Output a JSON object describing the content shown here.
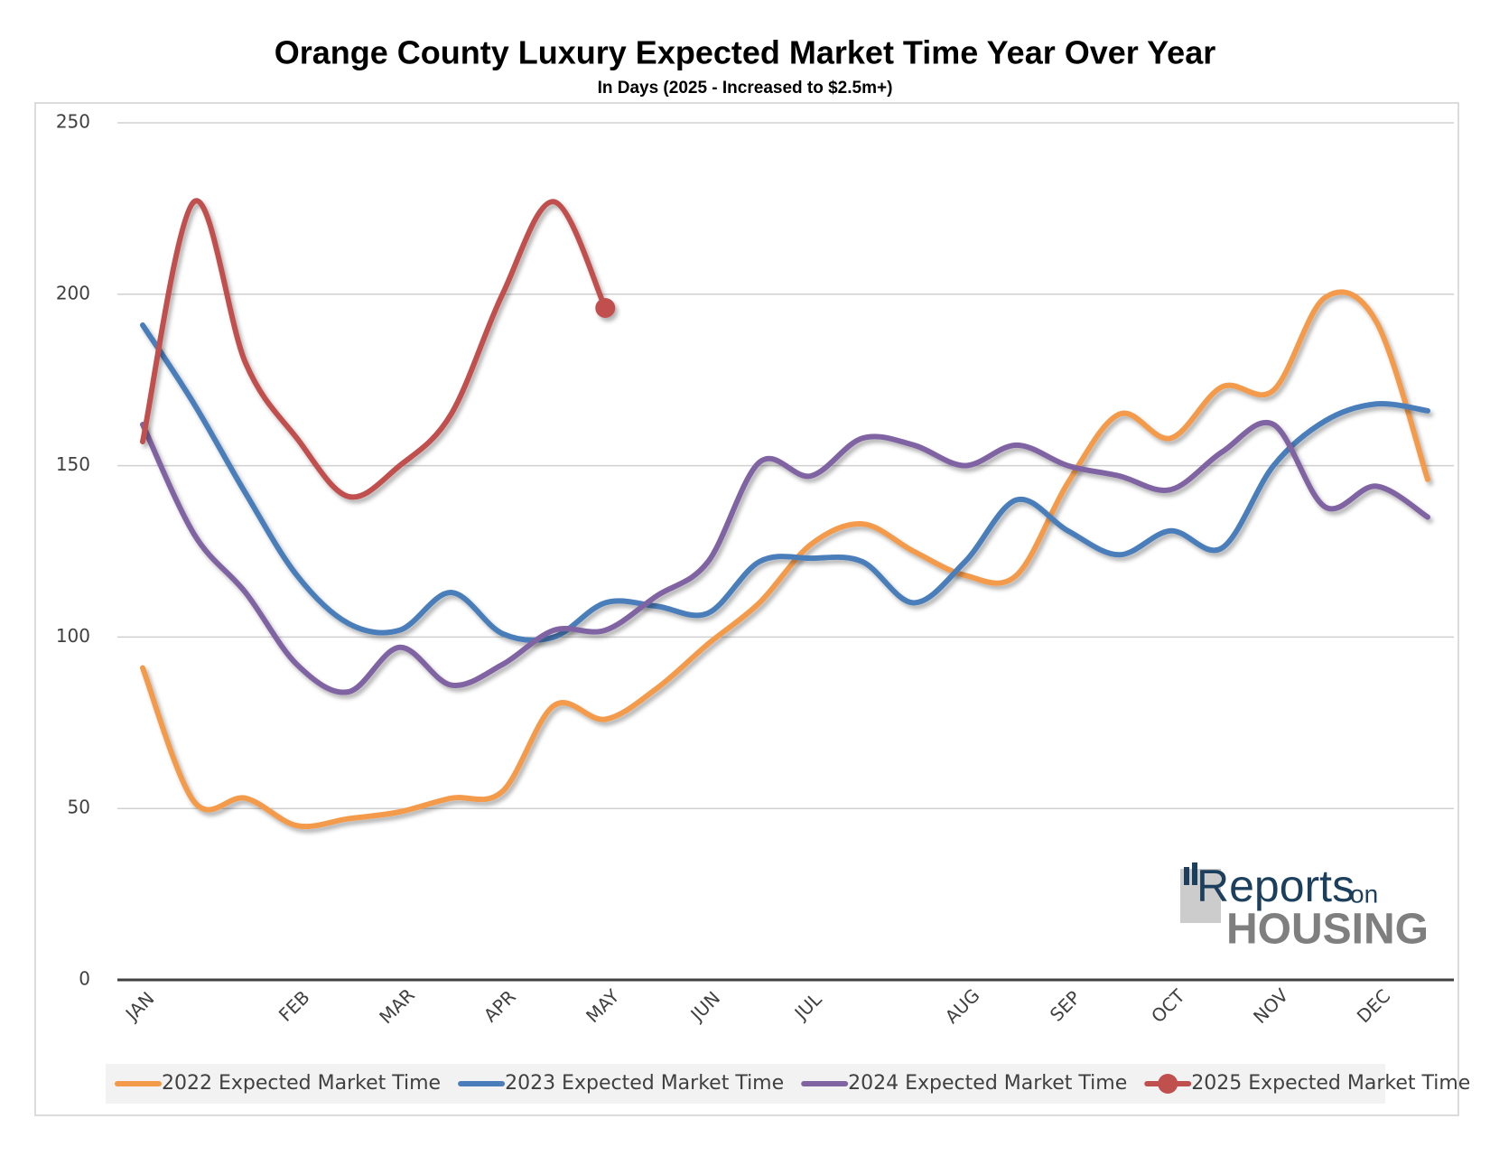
{
  "chart_data": {
    "type": "line",
    "title": "Orange County Luxury Expected Market Time Year Over Year",
    "subtitle": "In Days (2025 - Increased to $2.5m+)",
    "categories": [
      "JAN",
      null,
      null,
      "FEB",
      null,
      "MAR",
      null,
      "APR",
      null,
      "MAY",
      null,
      "JUN",
      null,
      "JUL",
      null,
      null,
      "AUG",
      null,
      "SEP",
      null,
      "OCT",
      null,
      "NOV",
      null,
      "DEC",
      null
    ],
    "series": [
      {
        "name": "2022 Expected Market Time",
        "color": "#f39a4b",
        "values": [
          91,
          52,
          53,
          45,
          47,
          49,
          53,
          55,
          80,
          76,
          85,
          98,
          110,
          127,
          133,
          125,
          118,
          118,
          145,
          165,
          158,
          173,
          172,
          199,
          192,
          146
        ]
      },
      {
        "name": "2023 Expected Market Time",
        "color": "#4a7ebb",
        "values": [
          191,
          168,
          142,
          118,
          104,
          102,
          113,
          101,
          100,
          110,
          109,
          107,
          122,
          123,
          122,
          110,
          122,
          140,
          131,
          124,
          131,
          126,
          150,
          163,
          168,
          166
        ]
      },
      {
        "name": "2024 Expected Market Time",
        "color": "#8064a2",
        "values": [
          162,
          130,
          113,
          92,
          84,
          97,
          86,
          92,
          102,
          102,
          112,
          122,
          151,
          147,
          158,
          156,
          150,
          156,
          150,
          147,
          143,
          154,
          162,
          138,
          144,
          135
        ]
      },
      {
        "name": "2025 Expected Market Time",
        "color": "#c0504d",
        "values": [
          157,
          227,
          180,
          158,
          141,
          150,
          165,
          200,
          227,
          196,
          null,
          null,
          null,
          null,
          null,
          null,
          null,
          null,
          null,
          null,
          null,
          null,
          null,
          null,
          null,
          null
        ],
        "end_marker": true
      }
    ],
    "ylim": [
      0,
      250
    ],
    "yticks": [
      0,
      50,
      100,
      150,
      200,
      250
    ],
    "grid": true,
    "legend": "bottom"
  },
  "logo": {
    "main": "Reports",
    "small": "on",
    "bottom": "HOUSING"
  }
}
